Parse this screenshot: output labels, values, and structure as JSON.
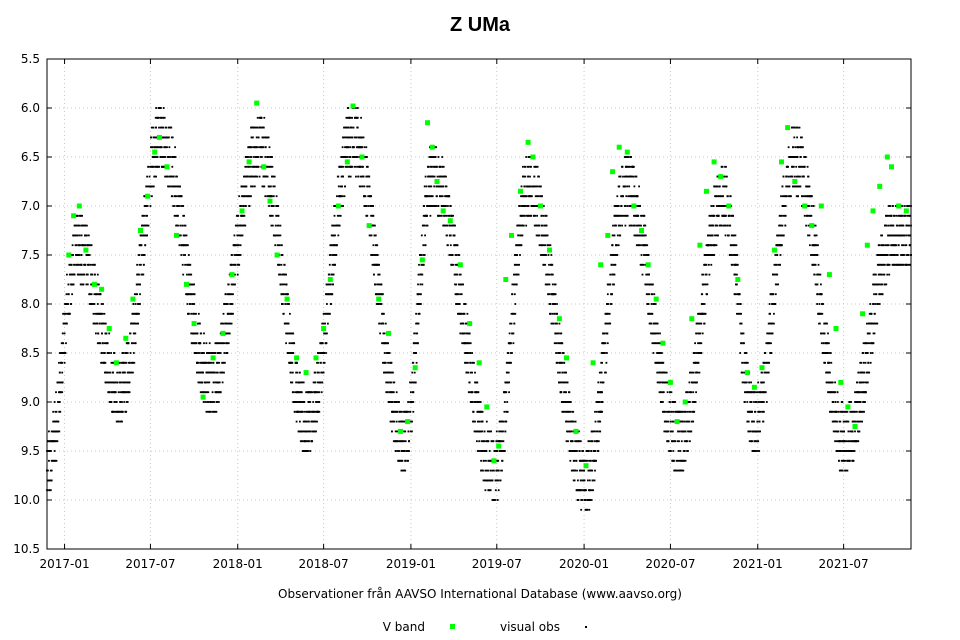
{
  "chart_data": {
    "type": "scatter",
    "title": "Z UMa",
    "xlabel": "Observationer från AAVSO International Database (www.aavso.org)",
    "ylabel": "",
    "y_inverted": true,
    "ylim": [
      5.5,
      10.5
    ],
    "xlim": [
      "2016-11-25",
      "2021-11-20"
    ],
    "y_ticks": [
      "5.5",
      "6.0",
      "6.5",
      "7.0",
      "7.5",
      "8.0",
      "8.5",
      "9.0",
      "9.5",
      "10.0",
      "10.5"
    ],
    "x_ticks": [
      "2017-01",
      "2017-07",
      "2018-01",
      "2018-07",
      "2019-01",
      "2019-07",
      "2020-01",
      "2020-07",
      "2021-01",
      "2021-07"
    ],
    "grid": true,
    "legend_position": "bottom",
    "series": [
      {
        "name": "V band",
        "color": "#00ff00",
        "marker": "square",
        "points": [
          [
            "2017-01-10",
            7.5
          ],
          [
            "2017-01-20",
            7.1
          ],
          [
            "2017-02-01",
            7.0
          ],
          [
            "2017-02-15",
            7.45
          ],
          [
            "2017-03-05",
            7.8
          ],
          [
            "2017-03-20",
            7.85
          ],
          [
            "2017-04-05",
            8.25
          ],
          [
            "2017-04-20",
            8.6
          ],
          [
            "2017-05-10",
            8.35
          ],
          [
            "2017-05-25",
            7.95
          ],
          [
            "2017-06-10",
            7.25
          ],
          [
            "2017-06-25",
            6.9
          ],
          [
            "2017-07-10",
            6.45
          ],
          [
            "2017-07-20",
            6.3
          ],
          [
            "2017-08-05",
            6.6
          ],
          [
            "2017-08-25",
            7.3
          ],
          [
            "2017-09-15",
            7.8
          ],
          [
            "2017-10-01",
            8.2
          ],
          [
            "2017-10-20",
            8.95
          ],
          [
            "2017-11-10",
            8.55
          ],
          [
            "2017-12-01",
            8.3
          ],
          [
            "2017-12-20",
            7.7
          ],
          [
            "2018-01-10",
            7.05
          ],
          [
            "2018-01-25",
            6.55
          ],
          [
            "2018-02-10",
            5.95
          ],
          [
            "2018-02-25",
            6.6
          ],
          [
            "2018-03-10",
            6.95
          ],
          [
            "2018-03-25",
            7.5
          ],
          [
            "2018-04-15",
            7.95
          ],
          [
            "2018-05-05",
            8.55
          ],
          [
            "2018-05-25",
            8.7
          ],
          [
            "2018-06-15",
            8.55
          ],
          [
            "2018-07-01",
            8.25
          ],
          [
            "2018-07-15",
            7.75
          ],
          [
            "2018-08-01",
            7.0
          ],
          [
            "2018-08-20",
            6.55
          ],
          [
            "2018-09-01",
            5.98
          ],
          [
            "2018-09-20",
            6.5
          ],
          [
            "2018-10-05",
            7.2
          ],
          [
            "2018-10-25",
            7.95
          ],
          [
            "2018-11-15",
            8.3
          ],
          [
            "2018-12-10",
            9.3
          ],
          [
            "2018-12-25",
            9.2
          ],
          [
            "2019-01-10",
            8.65
          ],
          [
            "2019-01-25",
            7.55
          ],
          [
            "2019-02-05",
            6.15
          ],
          [
            "2019-02-15",
            6.4
          ],
          [
            "2019-02-25",
            6.75
          ],
          [
            "2019-03-10",
            7.05
          ],
          [
            "2019-03-25",
            7.15
          ],
          [
            "2019-04-15",
            7.6
          ],
          [
            "2019-05-05",
            8.2
          ],
          [
            "2019-05-25",
            8.6
          ],
          [
            "2019-06-10",
            9.05
          ],
          [
            "2019-06-25",
            9.6
          ],
          [
            "2019-07-05",
            9.45
          ],
          [
            "2019-07-20",
            7.75
          ],
          [
            "2019-08-01",
            7.3
          ],
          [
            "2019-08-20",
            6.85
          ],
          [
            "2019-09-05",
            6.35
          ],
          [
            "2019-09-15",
            6.5
          ],
          [
            "2019-10-01",
            7.0
          ],
          [
            "2019-10-20",
            7.45
          ],
          [
            "2019-11-10",
            8.15
          ],
          [
            "2019-11-25",
            8.55
          ],
          [
            "2019-12-15",
            9.3
          ],
          [
            "2020-01-05",
            9.65
          ],
          [
            "2020-01-20",
            8.6
          ],
          [
            "2020-02-05",
            7.6
          ],
          [
            "2020-02-20",
            7.3
          ],
          [
            "2020-03-01",
            6.65
          ],
          [
            "2020-03-15",
            6.4
          ],
          [
            "2020-04-01",
            6.45
          ],
          [
            "2020-04-15",
            7.0
          ],
          [
            "2020-05-01",
            7.25
          ],
          [
            "2020-05-15",
            7.6
          ],
          [
            "2020-06-01",
            7.95
          ],
          [
            "2020-06-15",
            8.4
          ],
          [
            "2020-07-01",
            8.8
          ],
          [
            "2020-07-15",
            9.2
          ],
          [
            "2020-08-01",
            9.0
          ],
          [
            "2020-08-15",
            8.15
          ],
          [
            "2020-09-01",
            7.4
          ],
          [
            "2020-09-15",
            6.85
          ],
          [
            "2020-10-01",
            6.55
          ],
          [
            "2020-10-15",
            6.7
          ],
          [
            "2020-11-01",
            7.0
          ],
          [
            "2020-11-20",
            7.75
          ],
          [
            "2020-12-10",
            8.7
          ],
          [
            "2020-12-25",
            8.85
          ],
          [
            "2021-01-10",
            8.65
          ],
          [
            "2021-02-05",
            7.45
          ],
          [
            "2021-02-20",
            6.55
          ],
          [
            "2021-03-05",
            6.2
          ],
          [
            "2021-03-20",
            6.75
          ],
          [
            "2021-04-10",
            7.0
          ],
          [
            "2021-04-25",
            7.2
          ],
          [
            "2021-05-15",
            7.0
          ],
          [
            "2021-06-01",
            7.7
          ],
          [
            "2021-06-15",
            8.25
          ],
          [
            "2021-06-25",
            8.8
          ],
          [
            "2021-07-10",
            9.05
          ],
          [
            "2021-07-25",
            9.25
          ],
          [
            "2021-08-10",
            8.1
          ],
          [
            "2021-08-20",
            7.4
          ],
          [
            "2021-09-01",
            7.05
          ],
          [
            "2021-09-15",
            6.8
          ],
          [
            "2021-10-01",
            6.5
          ],
          [
            "2021-10-10",
            6.6
          ],
          [
            "2021-10-25",
            7.0
          ],
          [
            "2021-11-10",
            7.05
          ]
        ]
      },
      {
        "name": "visual obs",
        "color": "#000000",
        "marker": "dot",
        "minima": [
          [
            "2016-11-28",
            9.6
          ],
          [
            "2017-04-30",
            8.9
          ],
          [
            "2017-11-05",
            8.8
          ],
          [
            "2018-05-28",
            9.2
          ],
          [
            "2018-12-18",
            9.4
          ],
          [
            "2019-06-28",
            9.7
          ],
          [
            "2020-01-05",
            9.8
          ],
          [
            "2020-07-20",
            9.4
          ],
          [
            "2020-12-25",
            9.2
          ],
          [
            "2021-07-05",
            9.4
          ]
        ],
        "maxima": [
          [
            "2017-01-28",
            7.4
          ],
          [
            "2017-07-22",
            6.3
          ],
          [
            "2018-02-15",
            6.4
          ],
          [
            "2018-09-01",
            6.3
          ],
          [
            "2019-02-15",
            6.7
          ],
          [
            "2019-09-05",
            6.8
          ],
          [
            "2020-03-30",
            6.8
          ],
          [
            "2020-10-20",
            6.9
          ],
          [
            "2021-03-20",
            6.5
          ],
          [
            "2021-10-15",
            7.3
          ]
        ]
      }
    ]
  }
}
